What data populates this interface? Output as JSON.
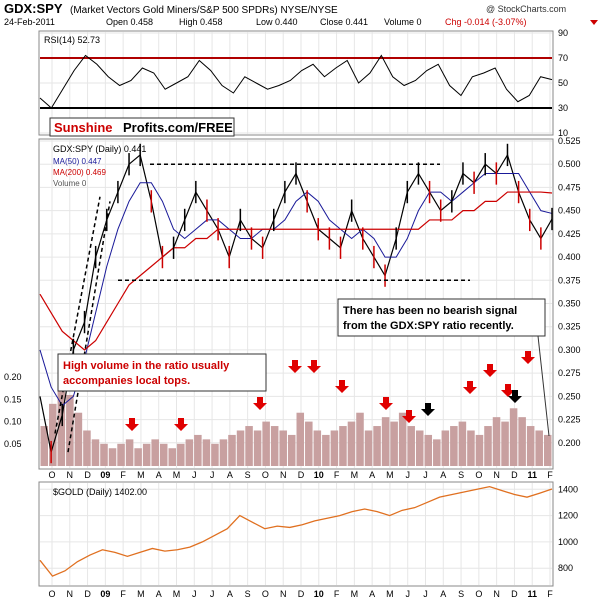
{
  "header": {
    "symbol": "GDX:SPY",
    "desc": "(Market Vectors Gold Miners/S&P 500 SPDRs) NYSE/NYSE",
    "watermark": "@ StockCharts.com",
    "date": "24-Feb-2011",
    "open": "Open 0.458",
    "high": "High 0.458",
    "low": "Low 0.440",
    "close": "Close 0.441",
    "volume": "Volume 0",
    "chg": "Chg -0.014 (-3.07%)"
  },
  "brand": {
    "part1": "Sunshine",
    "part2": "Profits.com/FREE"
  },
  "annotations": {
    "note_right_1": "There has been no bearish signal",
    "note_right_2": "from the GDX:SPY ratio recently.",
    "note_left_1": "High volume in the ratio usually",
    "note_left_2": "accompanies local tops."
  },
  "colors": {
    "price_bar": "#000000",
    "price_down": "#cc0000",
    "ma50": "#1a1a99",
    "ma200": "#cc0000",
    "volume_bar": "#c8a0a0",
    "rsi_bands": "#b00000",
    "gold_line": "#e07020",
    "arrow_red": "#e00000",
    "arrow_black": "#000000"
  },
  "chart_data": [
    {
      "type": "line",
      "title": "RSI(14) 52.73",
      "ylim": [
        10,
        90
      ],
      "yticks": [
        10,
        30,
        50,
        70,
        90
      ],
      "bands": [
        30,
        70
      ],
      "x_labels": [
        "O",
        "N",
        "D",
        "09",
        "F",
        "M",
        "A",
        "M",
        "J",
        "J",
        "A",
        "S",
        "O",
        "N",
        "D",
        "10",
        "F",
        "M",
        "A",
        "M",
        "J",
        "J",
        "A",
        "S",
        "O",
        "N",
        "D",
        "11",
        "F"
      ],
      "values": [
        38,
        30,
        45,
        60,
        72,
        65,
        55,
        48,
        52,
        62,
        58,
        45,
        50,
        55,
        68,
        60,
        48,
        42,
        55,
        50,
        45,
        48,
        52,
        60,
        65,
        55,
        62,
        68,
        50,
        58,
        72,
        55,
        48,
        52,
        60,
        65,
        48,
        40,
        55,
        58,
        62,
        45,
        35,
        40,
        55,
        52.73
      ]
    },
    {
      "type": "line",
      "title": "GDX:SPY (Daily) 0.441",
      "legend": [
        "GDX:SPY (Daily) 0.441",
        "MA(50) 0.447",
        "MA(200) 0.469",
        "Volume 0"
      ],
      "ylim": [
        0.175,
        0.525
      ],
      "yticks": [
        0.2,
        0.225,
        0.25,
        0.275,
        0.3,
        0.325,
        0.35,
        0.375,
        0.4,
        0.425,
        0.45,
        0.475,
        0.5,
        0.525
      ],
      "x_labels": [
        "O",
        "N",
        "D",
        "09",
        "F",
        "M",
        "A",
        "M",
        "J",
        "J",
        "A",
        "S",
        "O",
        "N",
        "D",
        "10",
        "F",
        "M",
        "A",
        "M",
        "J",
        "J",
        "A",
        "S",
        "O",
        "N",
        "D",
        "11",
        "F"
      ],
      "series": [
        {
          "name": "GDX:SPY (Daily)",
          "values": [
            0.25,
            0.19,
            0.23,
            0.3,
            0.33,
            0.4,
            0.44,
            0.47,
            0.5,
            0.51,
            0.46,
            0.4,
            0.41,
            0.44,
            0.47,
            0.45,
            0.43,
            0.4,
            0.44,
            0.42,
            0.41,
            0.44,
            0.47,
            0.49,
            0.46,
            0.43,
            0.42,
            0.41,
            0.45,
            0.42,
            0.4,
            0.38,
            0.42,
            0.47,
            0.49,
            0.47,
            0.45,
            0.46,
            0.49,
            0.48,
            0.5,
            0.49,
            0.51,
            0.47,
            0.44,
            0.42,
            0.441
          ]
        },
        {
          "name": "MA(50)",
          "values": [
            0.3,
            0.26,
            0.24,
            0.25,
            0.29,
            0.34,
            0.39,
            0.43,
            0.46,
            0.48,
            0.48,
            0.46,
            0.43,
            0.42,
            0.43,
            0.44,
            0.44,
            0.43,
            0.42,
            0.42,
            0.43,
            0.43,
            0.44,
            0.46,
            0.47,
            0.46,
            0.44,
            0.43,
            0.42,
            0.43,
            0.42,
            0.4,
            0.4,
            0.42,
            0.45,
            0.47,
            0.47,
            0.46,
            0.47,
            0.48,
            0.49,
            0.49,
            0.49,
            0.49,
            0.47,
            0.45,
            0.447
          ]
        },
        {
          "name": "MA(200)",
          "values": [
            0.36,
            0.34,
            0.32,
            0.31,
            0.3,
            0.31,
            0.33,
            0.35,
            0.37,
            0.38,
            0.39,
            0.4,
            0.41,
            0.41,
            0.42,
            0.42,
            0.43,
            0.43,
            0.43,
            0.43,
            0.43,
            0.43,
            0.43,
            0.43,
            0.43,
            0.43,
            0.43,
            0.43,
            0.43,
            0.43,
            0.43,
            0.43,
            0.43,
            0.43,
            0.43,
            0.44,
            0.44,
            0.44,
            0.45,
            0.45,
            0.46,
            0.46,
            0.47,
            0.47,
            0.47,
            0.47,
            0.469
          ]
        }
      ],
      "support_levels": [
        0.375,
        0.5
      ],
      "volume_ylim": [
        0,
        0.25
      ],
      "volume_yticks": [
        0.05,
        0.1,
        0.15,
        0.2
      ],
      "volume": [
        0.09,
        0.14,
        0.18,
        0.16,
        0.12,
        0.08,
        0.06,
        0.05,
        0.04,
        0.05,
        0.06,
        0.04,
        0.05,
        0.06,
        0.05,
        0.04,
        0.05,
        0.06,
        0.07,
        0.06,
        0.05,
        0.06,
        0.07,
        0.08,
        0.09,
        0.08,
        0.1,
        0.09,
        0.08,
        0.07,
        0.12,
        0.1,
        0.08,
        0.07,
        0.08,
        0.09,
        0.1,
        0.12,
        0.08,
        0.09,
        0.11,
        0.1,
        0.12,
        0.09,
        0.08,
        0.07,
        0.06,
        0.08,
        0.09,
        0.1,
        0.08,
        0.07,
        0.09,
        0.11,
        0.1,
        0.13,
        0.11,
        0.09,
        0.08,
        0.07
      ]
    },
    {
      "type": "line",
      "title": "$GOLD (Daily) 1402.00",
      "ylim": [
        680,
        1440
      ],
      "yticks": [
        800,
        1000,
        1200,
        1400
      ],
      "x_labels": [
        "O",
        "N",
        "D",
        "09",
        "F",
        "M",
        "A",
        "M",
        "J",
        "J",
        "A",
        "S",
        "O",
        "N",
        "D",
        "10",
        "F",
        "M",
        "A",
        "M",
        "J",
        "J",
        "A",
        "S",
        "O",
        "N",
        "D",
        "11",
        "F"
      ],
      "values": [
        860,
        740,
        780,
        850,
        900,
        940,
        920,
        890,
        920,
        950,
        930,
        940,
        960,
        1000,
        1050,
        1100,
        1200,
        1150,
        1100,
        1120,
        1110,
        1130,
        1160,
        1180,
        1200,
        1230,
        1250,
        1230,
        1200,
        1240,
        1260,
        1300,
        1340,
        1360,
        1380,
        1400,
        1420,
        1390,
        1360,
        1340,
        1370,
        1402
      ]
    }
  ]
}
